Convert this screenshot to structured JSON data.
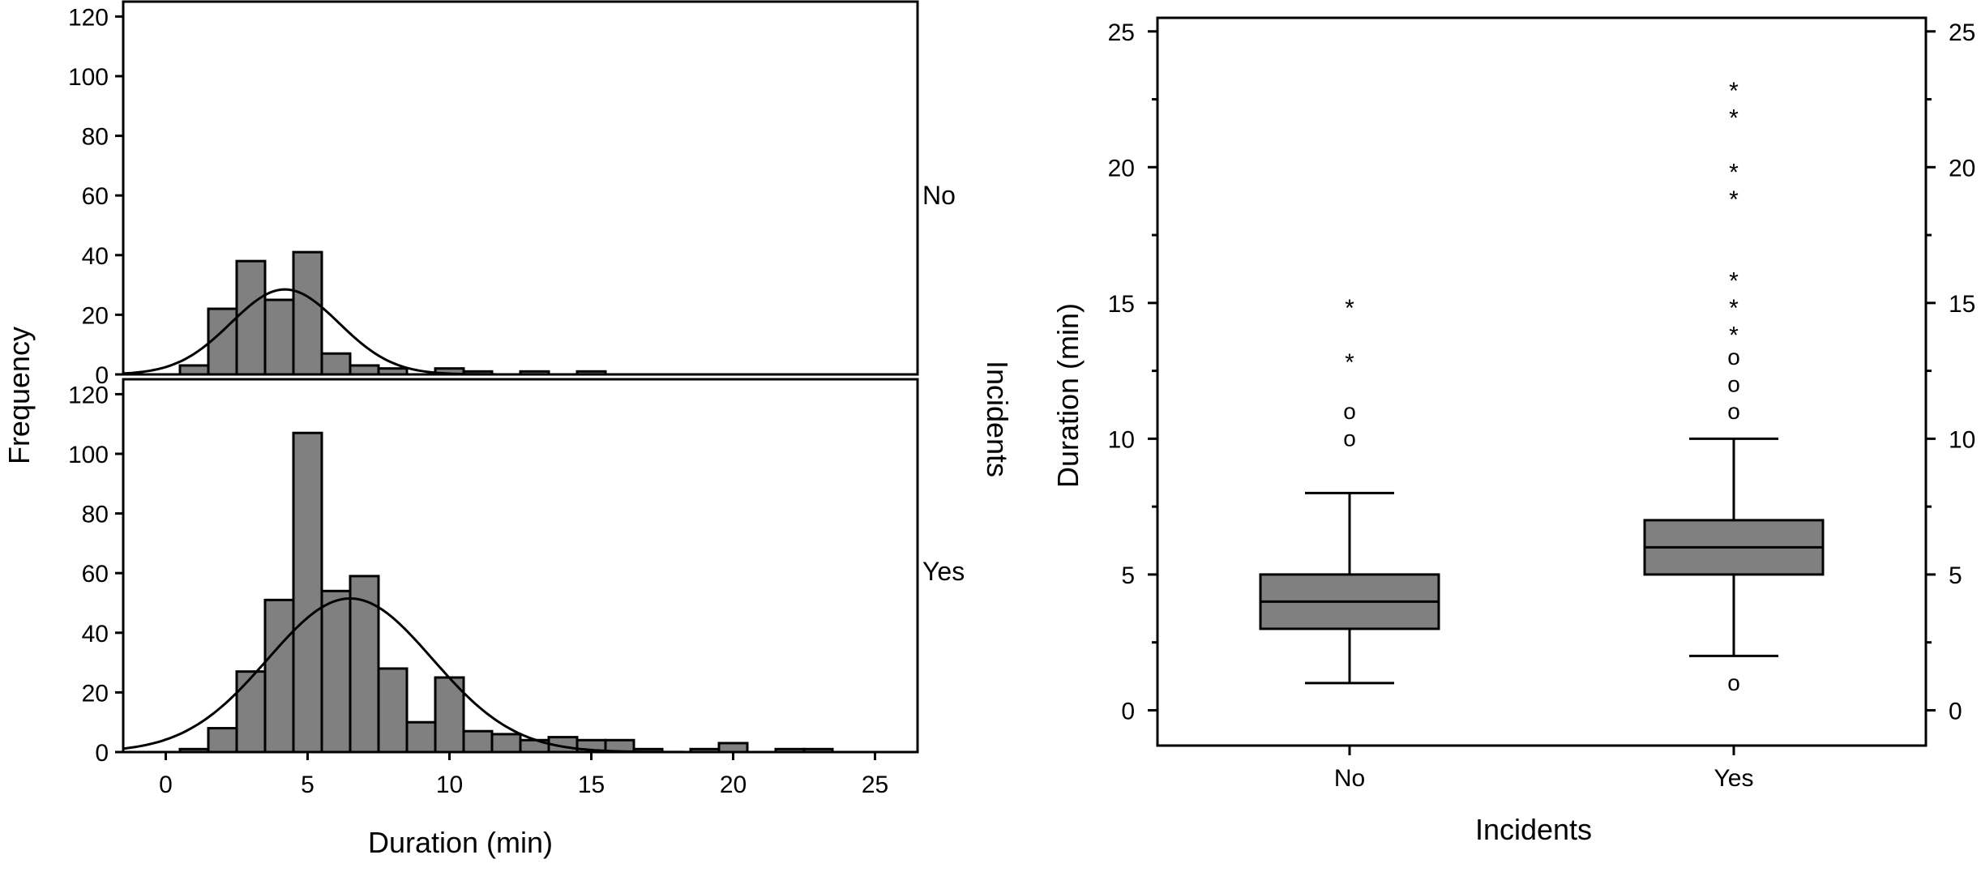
{
  "chart_data": [
    {
      "type": "bar",
      "subtype": "histogram-panels",
      "xlabel": "Duration (min)",
      "ylabel": "Frequency",
      "group_axis_label": "Incidents",
      "xlim": [
        -1.5,
        26.5
      ],
      "ylim": [
        0,
        125
      ],
      "xticks": [
        0,
        5,
        10,
        15,
        20,
        25
      ],
      "yticks": [
        0,
        20,
        40,
        60,
        80,
        100,
        120
      ],
      "bin_width": 1,
      "bar_color": "#808080",
      "panels": [
        {
          "name": "No",
          "bins": [
            {
              "x0": 0.5,
              "x1": 1.5,
              "count": 3
            },
            {
              "x0": 1.5,
              "x1": 2.5,
              "count": 22
            },
            {
              "x0": 2.5,
              "x1": 3.5,
              "count": 38
            },
            {
              "x0": 3.5,
              "x1": 4.5,
              "count": 25
            },
            {
              "x0": 4.5,
              "x1": 5.5,
              "count": 41
            },
            {
              "x0": 5.5,
              "x1": 6.5,
              "count": 7
            },
            {
              "x0": 6.5,
              "x1": 7.5,
              "count": 3
            },
            {
              "x0": 7.5,
              "x1": 8.5,
              "count": 2
            },
            {
              "x0": 9.5,
              "x1": 10.5,
              "count": 2
            },
            {
              "x0": 10.5,
              "x1": 11.5,
              "count": 1
            },
            {
              "x0": 12.5,
              "x1": 13.5,
              "count": 1
            },
            {
              "x0": 14.5,
              "x1": 15.5,
              "count": 1
            }
          ],
          "normal_curve": {
            "mean": 4.2,
            "sd": 1.9,
            "peak": 28.5
          }
        },
        {
          "name": "Yes",
          "bins": [
            {
              "x0": 0.5,
              "x1": 1.5,
              "count": 1
            },
            {
              "x0": 1.5,
              "x1": 2.5,
              "count": 8
            },
            {
              "x0": 2.5,
              "x1": 3.5,
              "count": 27
            },
            {
              "x0": 3.5,
              "x1": 4.5,
              "count": 51
            },
            {
              "x0": 4.5,
              "x1": 5.5,
              "count": 107
            },
            {
              "x0": 5.5,
              "x1": 6.5,
              "count": 54
            },
            {
              "x0": 6.5,
              "x1": 7.5,
              "count": 59
            },
            {
              "x0": 7.5,
              "x1": 8.5,
              "count": 28
            },
            {
              "x0": 8.5,
              "x1": 9.5,
              "count": 10
            },
            {
              "x0": 9.5,
              "x1": 10.5,
              "count": 25
            },
            {
              "x0": 10.5,
              "x1": 11.5,
              "count": 7
            },
            {
              "x0": 11.5,
              "x1": 12.5,
              "count": 6
            },
            {
              "x0": 12.5,
              "x1": 13.5,
              "count": 4
            },
            {
              "x0": 13.5,
              "x1": 14.5,
              "count": 5
            },
            {
              "x0": 14.5,
              "x1": 15.5,
              "count": 4
            },
            {
              "x0": 15.5,
              "x1": 16.5,
              "count": 4
            },
            {
              "x0": 16.5,
              "x1": 17.5,
              "count": 1
            },
            {
              "x0": 18.5,
              "x1": 19.5,
              "count": 1
            },
            {
              "x0": 19.5,
              "x1": 20.5,
              "count": 3
            },
            {
              "x0": 21.5,
              "x1": 22.5,
              "count": 1
            },
            {
              "x0": 22.5,
              "x1": 23.5,
              "count": 1
            }
          ],
          "normal_curve": {
            "mean": 6.5,
            "sd": 2.9,
            "peak": 51.5
          }
        }
      ]
    },
    {
      "type": "box",
      "xlabel": "Incidents",
      "ylabel": "Duration (min)",
      "categories": [
        "No",
        "Yes"
      ],
      "ylim": [
        -1.3,
        25.5
      ],
      "yticks": [
        0,
        5,
        10,
        15,
        20,
        25
      ],
      "box_color": "#808080",
      "boxes": [
        {
          "name": "No",
          "whisker_low": 1,
          "q1": 3,
          "median": 4,
          "q3": 5,
          "whisker_high": 8,
          "outliers": [
            10,
            11
          ],
          "extremes": [
            13,
            15
          ]
        },
        {
          "name": "Yes",
          "whisker_low": 2,
          "q1": 5,
          "median": 6,
          "q3": 7,
          "whisker_high": 10,
          "outliers": [
            1,
            11,
            12,
            13
          ],
          "extremes": [
            14,
            15,
            16,
            19,
            20,
            22,
            23
          ]
        }
      ],
      "outlier_symbol": "o",
      "extreme_symbol": "*"
    }
  ]
}
